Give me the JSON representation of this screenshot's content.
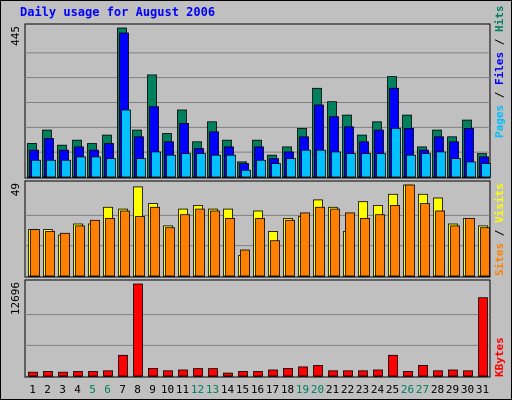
{
  "colors": {
    "background": "#c0c0c0",
    "plot_background": "#c0c0c0",
    "grid": "#808080",
    "title": "#0000ff",
    "hits": "#00805c",
    "files": "#0000ff",
    "pages": "#00c0ff",
    "visits": "#ffff00",
    "sites": "#ff8000",
    "kbytes": "#ff0000",
    "weekend_label": "#00805c",
    "weekday_label": "#000000"
  },
  "chart_data": {
    "type": "bar",
    "title": "Daily usage for August 2006",
    "categories": [
      "1",
      "2",
      "3",
      "4",
      "5",
      "6",
      "7",
      "8",
      "9",
      "10",
      "11",
      "12",
      "13",
      "14",
      "15",
      "16",
      "17",
      "18",
      "19",
      "20",
      "21",
      "22",
      "23",
      "24",
      "25",
      "26",
      "27",
      "28",
      "29",
      "30",
      "31"
    ],
    "weekend_days": [
      "5",
      "6",
      "12",
      "13",
      "19",
      "20",
      "26",
      "27"
    ],
    "panels": [
      {
        "name": "hits-files-pages",
        "ymax_label": "445",
        "ylim": [
          0,
          445
        ],
        "legend": [
          "Pages",
          "/",
          "Files",
          "/",
          "Hits"
        ],
        "series": [
          {
            "name": "Hits",
            "values": [
              100,
              140,
              95,
              110,
              100,
              125,
              445,
              140,
              305,
              130,
              200,
              105,
              165,
              110,
              45,
              110,
              65,
              90,
              145,
              265,
              225,
              185,
              125,
              165,
              300,
              185,
              90,
              140,
              120,
              170,
              70
            ]
          },
          {
            "name": "Files",
            "values": [
              80,
              115,
              80,
              90,
              80,
              100,
              430,
              120,
              210,
              105,
              160,
              85,
              135,
              90,
              40,
              90,
              55,
              75,
              120,
              215,
              180,
              150,
              105,
              140,
              265,
              145,
              80,
              120,
              105,
              145,
              60
            ]
          },
          {
            "name": "Pages",
            "values": [
              50,
              50,
              50,
              60,
              60,
              55,
              200,
              55,
              75,
              65,
              70,
              70,
              65,
              65,
              20,
              50,
              40,
              55,
              80,
              80,
              75,
              70,
              70,
              70,
              145,
              65,
              70,
              75,
              55,
              45,
              40
            ]
          }
        ]
      },
      {
        "name": "visits-sites",
        "ymax_label": "49",
        "ylim": [
          0,
          49
        ],
        "legend": [
          "Sites",
          "/",
          "Visits"
        ],
        "series": [
          {
            "name": "Visits",
            "values": [
              25,
              25,
              22,
              28,
              28,
              37,
              36,
              48,
              39,
              27,
              36,
              38,
              36,
              36,
              11,
              35,
              24,
              31,
              32,
              41,
              37,
              24,
              40,
              38,
              44,
              49,
              44,
              42,
              28,
              31,
              27
            ]
          },
          {
            "name": "Sites",
            "values": [
              25,
              24,
              23,
              27,
              30,
              31,
              35,
              32,
              37,
              26,
              33,
              36,
              35,
              31,
              14,
              31,
              19,
              30,
              34,
              37,
              36,
              34,
              31,
              33,
              38,
              49,
              39,
              35,
              27,
              31,
              26
            ]
          }
        ]
      },
      {
        "name": "kbytes",
        "ymax_label": "12696",
        "ylim": [
          0,
          12696
        ],
        "legend": [
          "KBytes"
        ],
        "series": [
          {
            "name": "KBytes",
            "values": [
              520,
              620,
              520,
              620,
              620,
              720,
              2850,
              12696,
              1050,
              720,
              830,
              1020,
              1020,
              400,
              620,
              620,
              830,
              1050,
              1250,
              1460,
              720,
              720,
              720,
              830,
              2850,
              620,
              1460,
              720,
              830,
              720,
              10800
            ]
          }
        ]
      }
    ]
  }
}
